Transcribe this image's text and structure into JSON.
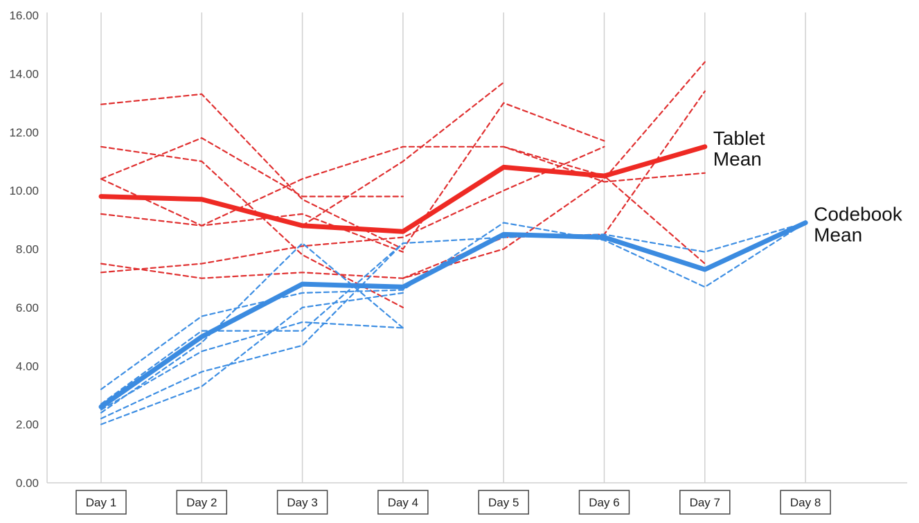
{
  "chart_data": {
    "type": "line",
    "title": "",
    "xlabel": "",
    "ylabel": "",
    "ylim": [
      0,
      16
    ],
    "yticks": [
      "0.00",
      "2.00",
      "4.00",
      "6.00",
      "8.00",
      "10.00",
      "12.00",
      "14.00",
      "16.00"
    ],
    "categories": [
      "Day 1",
      "Day 2",
      "Day 3",
      "Day 4",
      "Day 5",
      "Day 6",
      "Day 7",
      "Day 8"
    ],
    "grid": "vertical",
    "legend": "none",
    "colors": {
      "tablet": "#ee2a24",
      "tablet_dashed": "#e03030",
      "codebook": "#3b8be0",
      "codebook_dashed": "#3d8ee3",
      "grid": "#d0d0d0"
    },
    "annotations": [
      {
        "lines": [
          "Tablet",
          "Mean"
        ],
        "series": "Tablet Mean"
      },
      {
        "lines": [
          "Codebook",
          "Mean"
        ],
        "series": "Codebook Mean"
      }
    ],
    "series": [
      {
        "name": "Tablet Mean",
        "style": "solid",
        "color": "#ee2a24",
        "values": [
          9.8,
          9.7,
          8.8,
          8.6,
          10.8,
          10.5,
          11.5,
          null
        ]
      },
      {
        "name": "Codebook Mean",
        "style": "solid",
        "color": "#3b8be0",
        "values": [
          2.6,
          5.0,
          6.8,
          6.7,
          8.5,
          8.4,
          7.3,
          8.9
        ]
      },
      {
        "style": "dashed",
        "color": "#e03030",
        "values": [
          12.95,
          13.3,
          9.7,
          8.0,
          13.0,
          11.7,
          null,
          null
        ]
      },
      {
        "style": "dashed",
        "color": "#e03030",
        "values": [
          11.5,
          11.0,
          7.8,
          6.0,
          null,
          null,
          null,
          null
        ]
      },
      {
        "style": "dashed",
        "color": "#e03030",
        "values": [
          10.4,
          11.8,
          9.8,
          9.8,
          null,
          null,
          null,
          null
        ]
      },
      {
        "style": "dashed",
        "color": "#e03030",
        "values": [
          10.4,
          8.8,
          9.2,
          7.9,
          null,
          null,
          null,
          null
        ]
      },
      {
        "style": "dashed",
        "color": "#e03030",
        "values": [
          9.2,
          8.8,
          10.4,
          11.5,
          11.5,
          10.3,
          10.6,
          null
        ]
      },
      {
        "style": "dashed",
        "color": "#e03030",
        "values": [
          7.5,
          7.0,
          7.2,
          7.0,
          8.0,
          10.4,
          14.4,
          null
        ]
      },
      {
        "style": "dashed",
        "color": "#e03030",
        "values": [
          7.2,
          7.5,
          8.1,
          8.4,
          10.0,
          11.5,
          null,
          null
        ]
      },
      {
        "style": "dashed",
        "color": "#e03030",
        "values": [
          null,
          null,
          8.8,
          11.0,
          13.7,
          null,
          null,
          null
        ]
      },
      {
        "style": "dashed",
        "color": "#e03030",
        "values": [
          null,
          null,
          null,
          7.0,
          8.4,
          8.5,
          13.4,
          null
        ]
      },
      {
        "style": "dashed",
        "color": "#e03030",
        "values": [
          null,
          null,
          null,
          null,
          11.5,
          10.5,
          7.5,
          null
        ]
      },
      {
        "style": "dashed",
        "color": "#3d8ee3",
        "values": [
          3.2,
          5.7,
          6.5,
          6.6,
          8.9,
          8.3,
          6.7,
          8.9
        ]
      },
      {
        "style": "dashed",
        "color": "#3d8ee3",
        "values": [
          2.7,
          5.2,
          5.2,
          8.2,
          8.4,
          8.5,
          7.9,
          8.9
        ]
      },
      {
        "style": "dashed",
        "color": "#3d8ee3",
        "values": [
          2.4,
          4.8,
          8.2,
          5.3,
          null,
          null,
          null,
          null
        ]
      },
      {
        "style": "dashed",
        "color": "#3d8ee3",
        "values": [
          2.2,
          3.8,
          4.7,
          8.2,
          null,
          null,
          null,
          null
        ]
      },
      {
        "style": "dashed",
        "color": "#3d8ee3",
        "values": [
          2.0,
          3.3,
          6.0,
          6.5,
          null,
          null,
          null,
          null
        ]
      },
      {
        "style": "dashed",
        "color": "#3d8ee3",
        "values": [
          2.5,
          4.5,
          5.5,
          5.3,
          null,
          null,
          null,
          null
        ]
      }
    ]
  }
}
